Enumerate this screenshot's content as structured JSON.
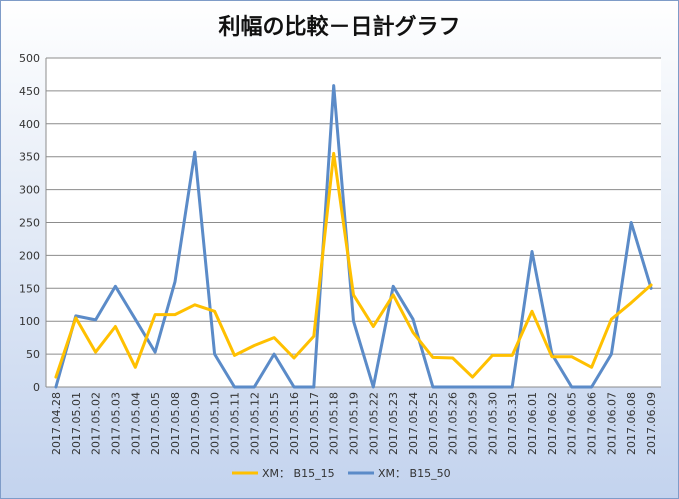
{
  "chart_data": {
    "type": "line",
    "title": "利幅の比較－日計グラフ",
    "xlabel": "",
    "ylabel": "",
    "ylim": [
      0,
      500
    ],
    "yticks": [
      "0",
      "50",
      "100",
      "150",
      "200",
      "250",
      "300",
      "350",
      "400",
      "450",
      "500"
    ],
    "grid": true,
    "legend": "bottom",
    "categories": [
      "2017.04.28",
      "2017.05.01",
      "2017.05.02",
      "2017.05.03",
      "2017.05.04",
      "2017.05.05",
      "2017.05.08",
      "2017.05.09",
      "2017.05.10",
      "2017.05.11",
      "2017.05.12",
      "2017.05.15",
      "2017.05.16",
      "2017.05.17",
      "2017.05.18",
      "2017.05.19",
      "2017.05.22",
      "2017.05.23",
      "2017.05.24",
      "2017.05.25",
      "2017.05.26",
      "2017.05.29",
      "2017.05.30",
      "2017.05.31",
      "2017.06.01",
      "2017.06.02",
      "2017.06.05",
      "2017.06.06",
      "2017.06.07",
      "2017.06.08",
      "2017.06.09"
    ],
    "series": [
      {
        "name": "XM： B15_15",
        "color": "#ffc000",
        "values": [
          15,
          105,
          53,
          92,
          30,
          110,
          110,
          125,
          115,
          48,
          63,
          75,
          44,
          77,
          355,
          140,
          92,
          140,
          83,
          45,
          44,
          15,
          48,
          48,
          115,
          46,
          46,
          30,
          103,
          128,
          155
        ]
      },
      {
        "name": "XM： B15_50",
        "color": "#5b8bc8",
        "values": [
          0,
          108,
          102,
          153,
          103,
          53,
          160,
          357,
          50,
          0,
          0,
          50,
          0,
          0,
          458,
          100,
          0,
          153,
          103,
          0,
          0,
          0,
          0,
          0,
          206,
          50,
          0,
          0,
          50,
          250,
          150
        ]
      }
    ]
  }
}
